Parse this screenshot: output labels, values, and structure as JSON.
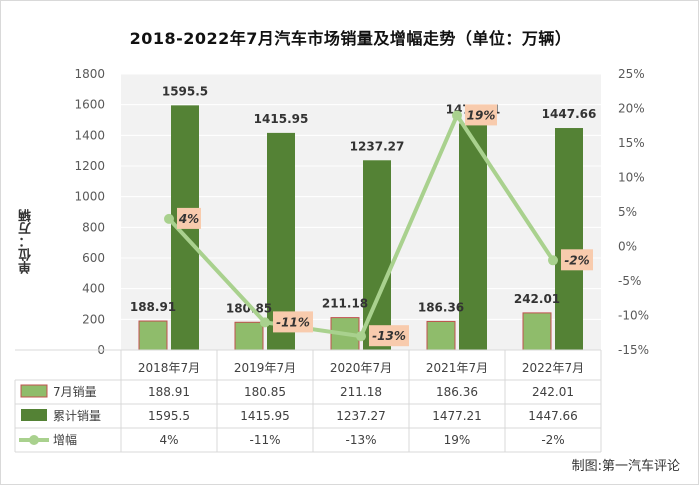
{
  "chart_data": {
    "type": "bar",
    "title": "2018-2022年7月汽车市场销量及增幅走势（单位：万辆）",
    "ylabel": "单位：万辆",
    "categories": [
      "2018年7月",
      "2019年7月",
      "2020年7月",
      "2021年7月",
      "2022年7月"
    ],
    "ylim": [
      0,
      1800
    ],
    "y_ticks": [
      "0",
      "200",
      "400",
      "600",
      "800",
      "1000",
      "1200",
      "1400",
      "1600",
      "1800"
    ],
    "y2lim": [
      -15,
      25
    ],
    "y2_ticks": [
      "-15%",
      "-10%",
      "-5%",
      "0%",
      "5%",
      "10%",
      "15%",
      "20%",
      "25%"
    ],
    "grid": true,
    "series": [
      {
        "name": "7月销量",
        "kind": "bar",
        "color": "#8fbc6b",
        "values": [
          188.91,
          180.85,
          211.18,
          186.36,
          242.01
        ],
        "labels": [
          "188.91",
          "180.85",
          "211.18",
          "186.36",
          "242.01"
        ]
      },
      {
        "name": "累计销量",
        "kind": "bar",
        "color": "#548235",
        "values": [
          1595.5,
          1415.95,
          1237.27,
          1477.21,
          1447.66
        ],
        "labels": [
          "1595.5",
          "1415.95",
          "1237.27",
          "1477.21",
          "1447.66"
        ]
      },
      {
        "name": "增幅",
        "kind": "line",
        "axis": "right",
        "color": "#a9d18e",
        "values": [
          4,
          -11,
          -13,
          19,
          -2
        ],
        "labels": [
          "4%",
          "-11%",
          "-13%",
          "19%",
          "-2%"
        ]
      }
    ],
    "credit": "制图:第一汽车评论"
  }
}
